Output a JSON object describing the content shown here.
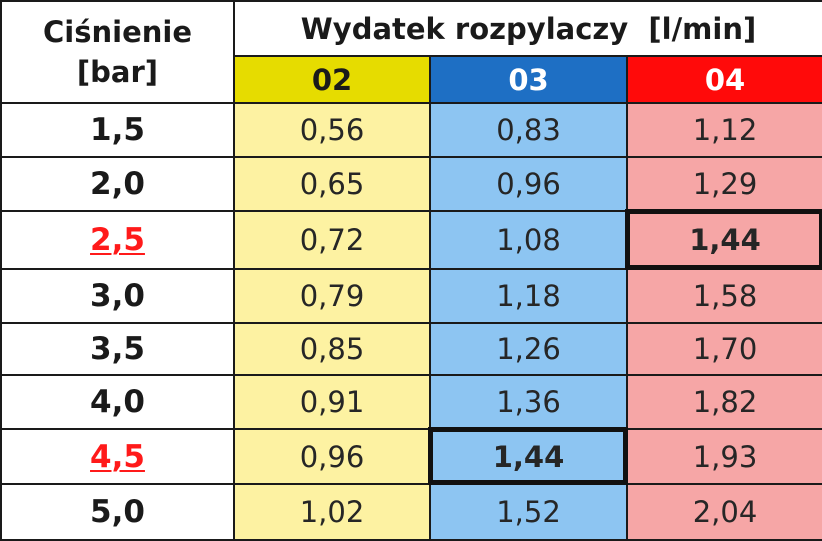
{
  "table": {
    "pressure_header_line1": "Ciśnienie",
    "pressure_header_line2": "[bar]",
    "flow_header": "Wydatek rozpylaczy  [l/min]",
    "columns": [
      {
        "label": "02",
        "header_bg": "#e6dc00",
        "header_color": "#1a1a1a",
        "cell_bg": "#fdf2a2"
      },
      {
        "label": "03",
        "header_bg": "#1e6fc4",
        "header_color": "#ffffff",
        "cell_bg": "#8dc5f2"
      },
      {
        "label": "04",
        "header_bg": "#ff0a0a",
        "header_color": "#ffffff",
        "cell_bg": "#f6a6a6"
      }
    ],
    "rows": [
      {
        "pressure": "1,5",
        "highlight": false,
        "values": [
          "0,56",
          "0,83",
          "1,12"
        ]
      },
      {
        "pressure": "2,0",
        "highlight": false,
        "values": [
          "0,65",
          "0,96",
          "1,29"
        ]
      },
      {
        "pressure": "2,5",
        "highlight": true,
        "values": [
          "0,72",
          "1,08",
          "1,44"
        ]
      },
      {
        "pressure": "3,0",
        "highlight": false,
        "values": [
          "0,79",
          "1,18",
          "1,58"
        ]
      },
      {
        "pressure": "3,5",
        "highlight": false,
        "values": [
          "0,85",
          "1,26",
          "1,70"
        ]
      },
      {
        "pressure": "4,0",
        "highlight": false,
        "values": [
          "0,91",
          "1,36",
          "1,82"
        ]
      },
      {
        "pressure": "4,5",
        "highlight": true,
        "values": [
          "0,96",
          "1,44",
          "1,93"
        ]
      },
      {
        "pressure": "5,0",
        "highlight": false,
        "values": [
          "1,02",
          "1,52",
          "2,04"
        ]
      }
    ],
    "boxed_cells": [
      {
        "row": 2,
        "col": 2
      },
      {
        "row": 6,
        "col": 1
      }
    ],
    "highlight_color": "#ff1a1a"
  }
}
